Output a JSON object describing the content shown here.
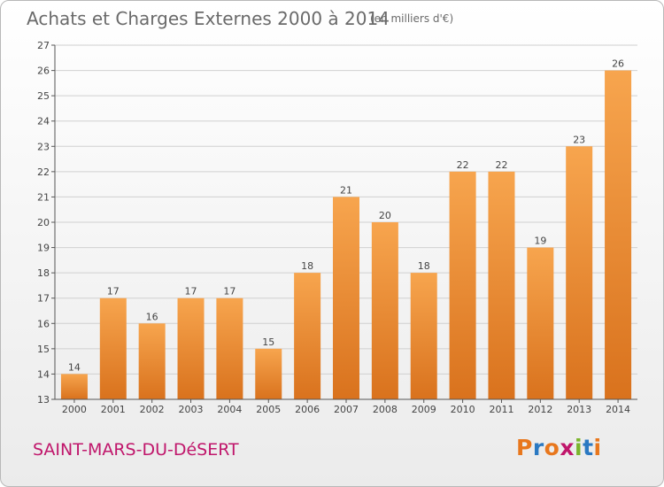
{
  "title": "Achats et Charges Externes 2000 à 2014",
  "subtitle": "(en milliers d'€)",
  "place": "SAINT-MARS-DU-DéSERT",
  "logo": {
    "letters": [
      "P",
      "r",
      "o",
      "x",
      "i",
      "t",
      "i"
    ],
    "colors": [
      "#e8771d",
      "#2b79c2",
      "#e8771d",
      "#c0166b",
      "#7bb52c",
      "#2b79c2",
      "#e8771d"
    ]
  },
  "colors": {
    "bar_light": "#f7a54e",
    "bar_dark": "#d9721d",
    "grid": "#d0d0d0",
    "axis": "#555555"
  },
  "chart_data": {
    "type": "bar",
    "categories": [
      "2000",
      "2001",
      "2002",
      "2003",
      "2004",
      "2005",
      "2006",
      "2007",
      "2008",
      "2009",
      "2010",
      "2011",
      "2012",
      "2013",
      "2014"
    ],
    "values": [
      14,
      17,
      16,
      17,
      17,
      15,
      18,
      21,
      20,
      18,
      22,
      22,
      19,
      23,
      26
    ],
    "ylim": [
      13,
      27
    ],
    "yticks": [
      13,
      14,
      15,
      16,
      17,
      18,
      19,
      20,
      21,
      22,
      23,
      24,
      25,
      26,
      27
    ],
    "grid": true,
    "xlabel": "",
    "ylabel": ""
  }
}
